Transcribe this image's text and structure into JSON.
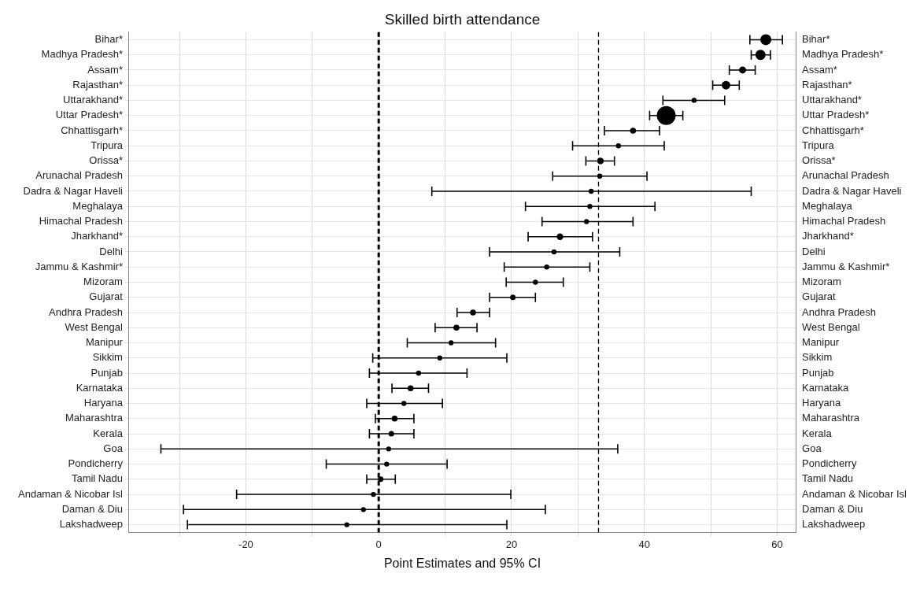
{
  "chart_data": {
    "type": "bubble",
    "orientation": "horizontal",
    "title": "Skilled birth attendance",
    "xlabel": "Point Estimates and 95% CI",
    "categories": [
      "Bihar*",
      "Madhya Pradesh*",
      "Assam*",
      "Rajasthan*",
      "Uttarakhand*",
      "Uttar Pradesh*",
      "Chhattisgarh*",
      "Tripura",
      "Orissa*",
      "Arunachal Pradesh",
      "Dadra & Nagar Haveli",
      "Meghalaya",
      "Himachal Pradesh",
      "Jharkhand*",
      "Delhi",
      "Jammu & Kashmir*",
      "Mizoram",
      "Gujarat",
      "Andhra Pradesh",
      "West Bengal",
      "Manipur",
      "Sikkim",
      "Punjab",
      "Karnataka",
      "Haryana",
      "Maharashtra",
      "Kerala",
      "Goa",
      "Pondicherry",
      "Tamil Nadu",
      "Andaman & Nicobar Isl",
      "Daman & Diu",
      "Lakshadweep"
    ],
    "y2_categories": [
      "Bihar*",
      "Madhya Pradesh*",
      "Assam*",
      "Rajasthan*",
      "Uttarakhand*",
      "Uttar Pradesh*",
      "Chhattisgarh*",
      "Tripura",
      "Orissa*",
      "Arunachal Pradesh",
      "Dadra & Nagar Haveli",
      "Meghalaya",
      "Himachal Pradesh",
      "Jharkhand*",
      "Delhi",
      "Jammu & Kashmir*",
      "Mizoram",
      "Gujarat",
      "Andhra Pradesh",
      "West Bengal",
      "Manipur",
      "Sikkim",
      "Punjab",
      "Karnataka",
      "Haryana",
      "Maharashtra",
      "Kerala",
      "Goa",
      "Pondicherry",
      "Tamil Nadu",
      "Andaman & Nicobar Isl",
      "Daman & Diu",
      "Lakshadweep"
    ],
    "values": [
      58.3,
      57.5,
      54.8,
      52.3,
      47.5,
      43.3,
      38.3,
      36.1,
      33.4,
      33.3,
      32.0,
      31.8,
      31.3,
      27.3,
      26.4,
      25.3,
      23.6,
      20.2,
      14.2,
      11.7,
      10.9,
      9.2,
      6.0,
      4.8,
      3.8,
      2.4,
      1.9,
      1.5,
      1.2,
      0.3,
      -0.8,
      -2.3,
      -4.8
    ],
    "errors": [
      [
        55.9,
        60.8
      ],
      [
        56.1,
        59.0
      ],
      [
        52.8,
        56.7
      ],
      [
        50.3,
        54.3
      ],
      [
        42.8,
        52.1
      ],
      [
        40.8,
        45.8
      ],
      [
        34.0,
        42.3
      ],
      [
        29.2,
        43.0
      ],
      [
        31.2,
        35.5
      ],
      [
        26.2,
        40.4
      ],
      [
        8.0,
        56.1
      ],
      [
        22.1,
        41.6
      ],
      [
        24.6,
        38.3
      ],
      [
        22.5,
        32.2
      ],
      [
        16.7,
        36.3
      ],
      [
        18.9,
        31.8
      ],
      [
        19.2,
        27.8
      ],
      [
        16.7,
        23.6
      ],
      [
        11.8,
        16.7
      ],
      [
        8.5,
        14.8
      ],
      [
        4.3,
        17.6
      ],
      [
        -0.9,
        19.3
      ],
      [
        -1.4,
        13.3
      ],
      [
        2.0,
        7.5
      ],
      [
        -1.8,
        9.6
      ],
      [
        -0.5,
        5.3
      ],
      [
        -1.4,
        5.3
      ],
      [
        -32.8,
        36.0
      ],
      [
        -7.9,
        10.3
      ],
      [
        -1.8,
        2.5
      ],
      [
        -21.4,
        19.9
      ],
      [
        -29.4,
        25.1
      ],
      [
        -28.8,
        19.3
      ]
    ],
    "sizes": [
      0.34,
      0.29,
      0.14,
      0.21,
      0.07,
      1,
      0.1,
      0.07,
      0.12,
      0.07,
      0.07,
      0.07,
      0.07,
      0.12,
      0.07,
      0.07,
      0.07,
      0.085,
      0.1,
      0.1,
      0.07,
      0.07,
      0.07,
      0.1,
      0.07,
      0.1,
      0.085,
      0.07,
      0.07,
      0.085,
      0.07,
      0.07,
      0.07
    ],
    "color": "#000000",
    "xlim": [
      -37.6,
      62.8
    ],
    "xticks": [
      {
        "value": -30,
        "label": null
      },
      {
        "value": -20,
        "label": "-20"
      },
      {
        "value": -10,
        "label": null
      },
      {
        "value": 0,
        "label": "0"
      },
      {
        "value": 10,
        "label": null
      },
      {
        "value": 20,
        "label": "20"
      },
      {
        "value": 30,
        "label": null
      },
      {
        "value": 40,
        "label": "40"
      },
      {
        "value": 50,
        "label": null
      },
      {
        "value": 60,
        "label": "60"
      }
    ],
    "ref_lines": [
      {
        "axis": "x",
        "value": 0,
        "color": "#000000",
        "line_style": "dashed"
      },
      {
        "axis": "x",
        "value": 33.1,
        "color": "#000000",
        "line_style": "dashed"
      }
    ],
    "grid": true,
    "legend": false
  }
}
